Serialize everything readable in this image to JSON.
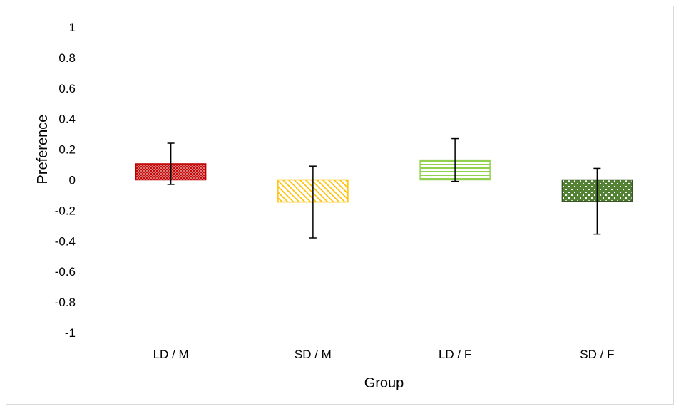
{
  "chart_data": {
    "type": "bar",
    "title": "",
    "xlabel": "Group",
    "ylabel": "Preference",
    "ylim": [
      -1,
      1
    ],
    "yticks": [
      1,
      0.8,
      0.6,
      0.4,
      0.2,
      0,
      -0.2,
      -0.4,
      -0.6,
      -0.8,
      -1
    ],
    "ytick_labels": [
      "1",
      "0.8",
      "0.6",
      "0.4",
      "0.2",
      "0",
      "-0.2",
      "-0.4",
      "-0.6",
      "-0.8",
      "-1"
    ],
    "grid": false,
    "legend": "none",
    "categories": [
      "LD / M",
      "SD / M",
      "LD / F",
      "SD / F"
    ],
    "values": [
      0.105,
      -0.145,
      0.13,
      -0.14
    ],
    "error": [
      0.135,
      0.235,
      0.14,
      0.215
    ],
    "bars": [
      {
        "fill": "#c00000",
        "stroke": "#c00000",
        "pattern": "crosshatch"
      },
      {
        "fill": "#ffc000",
        "stroke": "#ffc000",
        "pattern": "diagonal"
      },
      {
        "fill": "#92d050",
        "stroke": "#92d050",
        "pattern": "horizontal"
      },
      {
        "fill": "#548235",
        "stroke": "#375623",
        "pattern": "dots"
      }
    ],
    "colors": {
      "axis": "#d9d9d9",
      "errorbar": "#000000"
    }
  }
}
